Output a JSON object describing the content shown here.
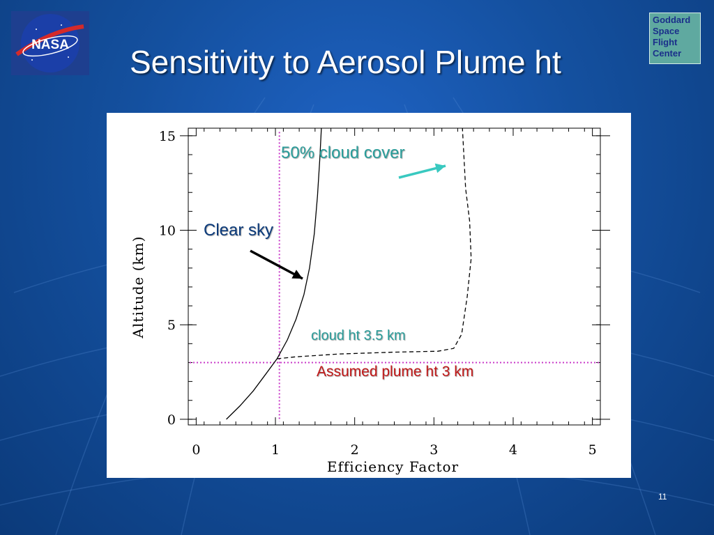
{
  "slide": {
    "title": "Sensitivity to Aerosol Plume ht",
    "page_number": "11",
    "gsfc_logo_text": [
      "Goddard",
      "Space",
      "Flight",
      "Center"
    ],
    "nasa_logo_text": "NASA",
    "icons": [
      "nasa-logo-icon",
      "gsfc-logo-icon"
    ],
    "colors": {
      "background": "#14509f",
      "title": "#ffffff",
      "chart_bg": "#ffffff"
    }
  },
  "chart_data": {
    "type": "line",
    "title": "",
    "xlabel": "Efficiency Factor",
    "ylabel": "Altitude (km)",
    "xlim": [
      -0.1,
      5.1
    ],
    "ylim": [
      -0.3,
      15.4
    ],
    "x_ticks": [
      0,
      1,
      2,
      3,
      4,
      5
    ],
    "y_ticks": [
      0,
      5,
      10,
      15
    ],
    "grid": false,
    "series": [
      {
        "style": "solid",
        "color": "#000000",
        "points": [
          [
            0.38,
            0
          ],
          [
            0.55,
            0.7
          ],
          [
            0.72,
            1.5
          ],
          [
            0.88,
            2.4
          ],
          [
            1.02,
            3.2
          ],
          [
            1.15,
            4.2
          ],
          [
            1.26,
            5.3
          ],
          [
            1.36,
            6.6
          ],
          [
            1.43,
            8.0
          ],
          [
            1.49,
            9.8
          ],
          [
            1.53,
            11.8
          ],
          [
            1.56,
            13.8
          ],
          [
            1.58,
            15.4
          ]
        ]
      },
      {
        "style": "dashed",
        "color": "#000000",
        "points": [
          [
            1.02,
            3.2
          ],
          [
            1.25,
            3.3
          ],
          [
            1.8,
            3.45
          ],
          [
            2.5,
            3.55
          ],
          [
            3.05,
            3.6
          ],
          [
            3.25,
            3.75
          ],
          [
            3.35,
            4.5
          ],
          [
            3.42,
            6.5
          ],
          [
            3.47,
            8.5
          ],
          [
            3.45,
            10.5
          ],
          [
            3.4,
            12.2
          ],
          [
            3.38,
            13.8
          ],
          [
            3.36,
            15.4
          ]
        ]
      }
    ],
    "reference_lines": [
      {
        "orientation": "vertical",
        "value": 1.05,
        "color": "#c838c8",
        "style": "dotted"
      },
      {
        "orientation": "horizontal",
        "value": 3.0,
        "color": "#c838c8",
        "style": "dotted"
      }
    ],
    "annotations": [
      {
        "text": "50% cloud cover",
        "color": "#2a9d9a"
      },
      {
        "text": "Clear sky",
        "color": "#0b3a7a"
      },
      {
        "text": "cloud ht 3.5 km",
        "color": "#2a9d9a"
      },
      {
        "text": "Assumed plume ht 3 km",
        "color": "#c01818"
      }
    ],
    "arrows": [
      {
        "color": "#39c9c0"
      },
      {
        "color": "#000000"
      }
    ]
  }
}
